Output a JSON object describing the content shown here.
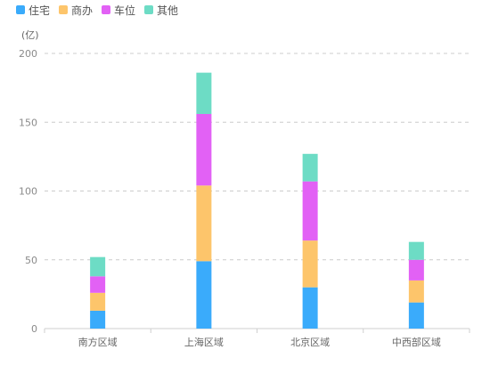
{
  "chart_data": {
    "type": "bar",
    "stacked": true,
    "unit_label": "(亿)",
    "categories": [
      "南方区域",
      "上海区域",
      "北京区域",
      "中西部区域"
    ],
    "series": [
      {
        "name": "住宅",
        "color": "#3aabfb",
        "values": [
          13,
          49,
          30,
          19
        ]
      },
      {
        "name": "商办",
        "color": "#fdc56b",
        "values": [
          13,
          55,
          34,
          16
        ]
      },
      {
        "name": "车位",
        "color": "#e261f5",
        "values": [
          12,
          52,
          43,
          15
        ]
      },
      {
        "name": "其他",
        "color": "#6ddcc5",
        "values": [
          14,
          30,
          20,
          13
        ]
      }
    ],
    "ylim": [
      0,
      200
    ],
    "yticks": [
      0,
      50,
      100,
      150,
      200
    ],
    "grid": true,
    "legend_position": "top-left"
  }
}
